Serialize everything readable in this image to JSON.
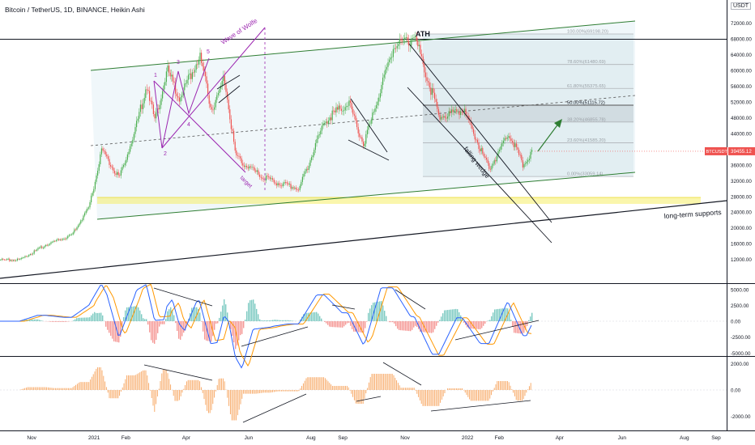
{
  "header": {
    "title": "Bitcoin / TetherUS, 1D, BINANCE, Heikin Ashi",
    "currency": "USDT"
  },
  "chart_data": [
    {
      "type": "candlestick",
      "title": "Bitcoin / TetherUS, 1D, BINANCE, Heikin Ashi",
      "x_tick_labels": [
        "Nov",
        "2021",
        "Feb",
        "Apr",
        "Jun",
        "Aug",
        "Sep",
        "Nov",
        "2022",
        "Feb",
        "Apr",
        "Jun",
        "Aug",
        "Sep"
      ],
      "y_tick_labels": [
        "72000.00",
        "68000.00",
        "64000.00",
        "60000.00",
        "56000.00",
        "52000.00",
        "48000.00",
        "44000.00",
        "40000.00",
        "36000.00",
        "32000.00",
        "28000.00",
        "24000.00",
        "20000.00",
        "16000.00",
        "12000.00"
      ],
      "ylim": [
        8000,
        74000
      ],
      "approx_close_series": [
        [
          "2020-10-20",
          11900
        ],
        [
          "2020-11-15",
          15800
        ],
        [
          "2020-12-10",
          18300
        ],
        [
          "2020-12-27",
          25500
        ],
        [
          "2021-01-08",
          40000
        ],
        [
          "2021-01-25",
          32500
        ],
        [
          "2021-02-10",
          45000
        ],
        [
          "2021-02-21",
          56500
        ],
        [
          "2021-03-01",
          47000
        ],
        [
          "2021-03-13",
          60000
        ],
        [
          "2021-03-25",
          53000
        ],
        [
          "2021-04-14",
          63500
        ],
        [
          "2021-04-25",
          50000
        ],
        [
          "2021-05-08",
          58000
        ],
        [
          "2021-05-19",
          38000
        ],
        [
          "2021-06-08",
          34000
        ],
        [
          "2021-06-22",
          32000
        ],
        [
          "2021-07-20",
          30000
        ],
        [
          "2021-08-14",
          47000
        ],
        [
          "2021-09-06",
          52000
        ],
        [
          "2021-09-21",
          41000
        ],
        [
          "2021-10-20",
          66000
        ],
        [
          "2021-11-10",
          68500
        ],
        [
          "2021-12-04",
          48000
        ],
        [
          "2021-12-27",
          50000
        ],
        [
          "2022-01-22",
          35000
        ],
        [
          "2022-02-10",
          44000
        ],
        [
          "2022-02-24",
          36000
        ],
        [
          "2022-03-05",
          39500
        ]
      ],
      "last_price_label": "BTCUSDT",
      "last_price": "39455.12",
      "annotations": [
        "ATH",
        "Wave of Wolfe",
        "target",
        "falling wedge",
        "long-term supports",
        "1",
        "2",
        "3",
        "4",
        "5"
      ],
      "fib_levels": [
        {
          "label": "100.00%(69198.20)",
          "ratio": 1.0
        },
        {
          "label": "78.60%(61480.69)",
          "ratio": 0.786
        },
        {
          "label": "61.80%(55375.65)",
          "ratio": 0.618
        },
        {
          "label": "50.00%(51115.72)",
          "ratio": 0.5
        },
        {
          "label": "38.20%(46855.78)",
          "ratio": 0.382
        },
        {
          "label": "23.60%(41585.20)",
          "ratio": 0.236
        },
        {
          "label": "0.00%(33059.14)",
          "ratio": 0.0
        }
      ]
    },
    {
      "type": "macd",
      "y_tick_labels": [
        "5000.00",
        "2500.00",
        "0.00",
        "-2500.00",
        "-5000.00"
      ],
      "ylim": [
        -5000,
        5000
      ]
    },
    {
      "type": "oscillator",
      "y_tick_labels": [
        "2000.00",
        "0.00",
        "-2000.00"
      ],
      "ylim": [
        -2000,
        2000
      ]
    }
  ],
  "colors": {
    "up": "#26a69a",
    "up_candle": "#4caf50",
    "down": "#ef5350",
    "channel": "#2e7d32",
    "fib": "#b0b3b8",
    "support": "#f5ef68",
    "wolfe": "#9c27b0",
    "macd": "#2962ff",
    "signal": "#ff9800",
    "osc": "#f7a35c",
    "price_label": "#ef5350"
  }
}
